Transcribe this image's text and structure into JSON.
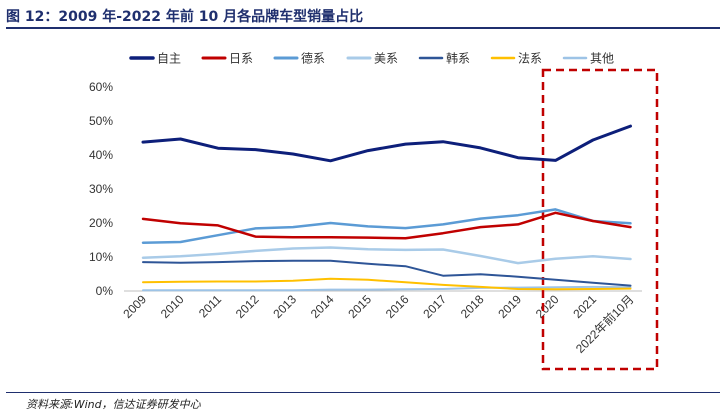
{
  "header": {
    "title": "图 12：2009 年-2022 年前 10 月各品牌车型销量占比"
  },
  "footer": {
    "source": "资料来源:Wind，信达证券研发中心"
  },
  "chart_data": {
    "type": "line",
    "title": "图 12：2009 年-2022 年前 10 月各品牌车型销量占比",
    "xlabel": "",
    "ylabel": "",
    "categories": [
      "2009",
      "2010",
      "2011",
      "2012",
      "2013",
      "2014",
      "2015",
      "2016",
      "2017",
      "2018",
      "2019",
      "2020",
      "2021",
      "2022年前10月"
    ],
    "ylim": [
      0,
      60
    ],
    "yticks": [
      0,
      10,
      20,
      30,
      40,
      50,
      60
    ],
    "ytick_labels": [
      "0%",
      "10%",
      "20%",
      "30%",
      "40%",
      "50%",
      "60%"
    ],
    "legend_position": "top",
    "grid": false,
    "highlight_box": "2020 to 2022年前10月 (dashed red box)",
    "series": [
      {
        "name": "自主",
        "color": "#0d1f7a",
        "width": 3,
        "values": [
          43.8,
          44.7,
          42.0,
          41.6,
          40.3,
          38.3,
          41.3,
          43.2,
          43.9,
          42.1,
          39.2,
          38.4,
          44.4,
          48.5
        ]
      },
      {
        "name": "日系",
        "color": "#c00000",
        "width": 2.5,
        "values": [
          21.2,
          19.9,
          19.3,
          16.0,
          15.8,
          15.8,
          15.7,
          15.5,
          17.0,
          18.8,
          19.6,
          23.0,
          20.6,
          18.8
        ]
      },
      {
        "name": "德系",
        "color": "#5b9bd5",
        "width": 2.5,
        "values": [
          14.2,
          14.4,
          16.4,
          18.4,
          18.8,
          20.0,
          19.0,
          18.5,
          19.6,
          21.3,
          22.3,
          24.0,
          20.6,
          19.9
        ]
      },
      {
        "name": "美系",
        "color": "#a9cbe8",
        "width": 2.5,
        "values": [
          9.8,
          10.2,
          10.9,
          11.8,
          12.5,
          12.8,
          12.3,
          12.1,
          12.2,
          10.3,
          8.2,
          9.5,
          10.2,
          9.4
        ]
      },
      {
        "name": "韩系",
        "color": "#2e5597",
        "width": 2,
        "values": [
          8.5,
          8.3,
          8.5,
          8.8,
          8.9,
          8.9,
          8.0,
          7.3,
          4.5,
          4.9,
          4.2,
          3.3,
          2.4,
          1.6
        ]
      },
      {
        "name": "法系",
        "color": "#ffc000",
        "width": 2,
        "values": [
          2.6,
          2.7,
          2.8,
          2.8,
          3.0,
          3.6,
          3.3,
          2.6,
          1.8,
          1.2,
          0.6,
          0.5,
          0.6,
          0.7
        ]
      },
      {
        "name": "其他",
        "color": "#9dc3e6",
        "width": 2,
        "values": [
          0.2,
          0.2,
          0.2,
          0.2,
          0.2,
          0.4,
          0.4,
          0.5,
          0.6,
          0.9,
          1.0,
          1.1,
          1.2,
          1.1
        ]
      }
    ]
  }
}
